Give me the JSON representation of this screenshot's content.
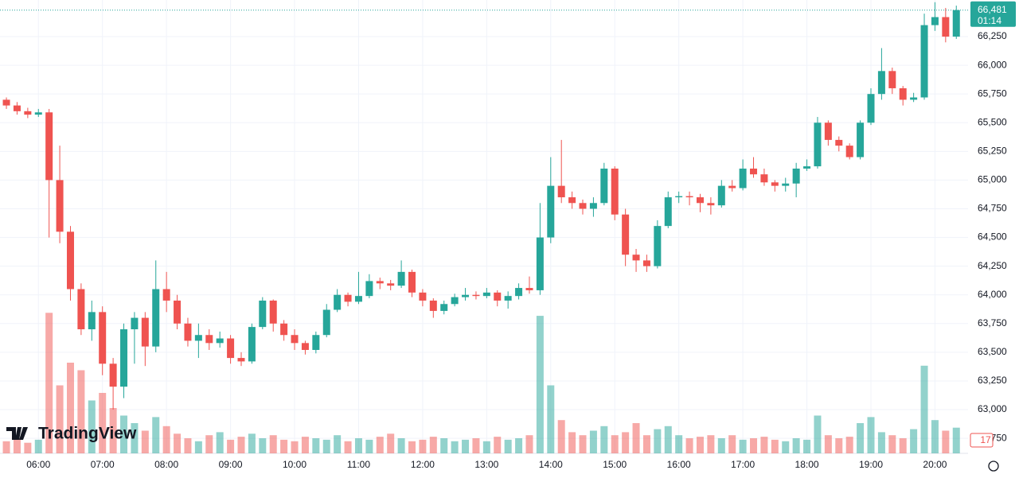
{
  "chart_data": {
    "type": "candlestick",
    "logo": "TradingView",
    "x": [
      330,
      340,
      350,
      360,
      370,
      380,
      390,
      400,
      410,
      420,
      430,
      440,
      450,
      460,
      470,
      480,
      490,
      500,
      510,
      520,
      530,
      540,
      550,
      560,
      570,
      580,
      590,
      600,
      610,
      620,
      630,
      640,
      650,
      660,
      670,
      680,
      690,
      700,
      710,
      720,
      730,
      740,
      750,
      760,
      770,
      780,
      790,
      800,
      810,
      820,
      830,
      840,
      850,
      860,
      870,
      880,
      890,
      900,
      910,
      920,
      930,
      940,
      950,
      960,
      970,
      980,
      990,
      1000,
      1010,
      1020,
      1030,
      1040,
      1050,
      1060,
      1070,
      1080,
      1090,
      1100,
      1110,
      1120,
      1130,
      1140,
      1150,
      1160,
      1170,
      1180,
      1190,
      1200,
      1210,
      1220
    ],
    "open": [
      65700,
      65650,
      65600,
      65570,
      65590,
      65000,
      64550,
      64050,
      63700,
      63850,
      63400,
      63200,
      63700,
      63800,
      63550,
      64050,
      63950,
      63750,
      63600,
      63650,
      63580,
      63620,
      63450,
      63420,
      63720,
      63950,
      63750,
      63650,
      63580,
      63520,
      63650,
      63870,
      64000,
      63940,
      63990,
      64120,
      64100,
      64080,
      64200,
      64020,
      63950,
      63860,
      63920,
      63980,
      64000,
      63990,
      64020,
      63950,
      63990,
      64060,
      64040,
      64500,
      64950,
      64850,
      64800,
      64750,
      64800,
      65100,
      64700,
      64350,
      64300,
      64250,
      64600,
      64850,
      64860,
      64850,
      64800,
      64780,
      64950,
      64930,
      65100,
      65050,
      64980,
      64950,
      64970,
      65100,
      65120,
      65500,
      65350,
      65300,
      65200,
      65500,
      65750,
      65950,
      65800,
      65700,
      65720,
      66350,
      66420,
      66250
    ],
    "high": [
      65720,
      65680,
      65630,
      65620,
      65620,
      65300,
      64600,
      64100,
      63950,
      63900,
      63450,
      63750,
      63850,
      63850,
      64300,
      64200,
      64000,
      63800,
      63750,
      63700,
      63680,
      63650,
      63500,
      63750,
      63980,
      63960,
      63780,
      63700,
      63600,
      63680,
      63920,
      64050,
      64020,
      64200,
      64180,
      64150,
      64130,
      64300,
      64220,
      64050,
      63970,
      63950,
      64010,
      64060,
      64030,
      64060,
      64040,
      64030,
      64100,
      64160,
      64800,
      65200,
      65350,
      64900,
      64830,
      64850,
      65150,
      65120,
      64750,
      64400,
      64350,
      64650,
      64900,
      64900,
      64900,
      64880,
      64850,
      65000,
      65000,
      65180,
      65200,
      65100,
      65000,
      65020,
      65150,
      65180,
      65550,
      65520,
      65380,
      65320,
      65520,
      65800,
      66150,
      65980,
      65820,
      65760,
      66450,
      66550,
      66500,
      66520
    ],
    "low": [
      65620,
      65570,
      65540,
      65550,
      64500,
      64450,
      63950,
      63650,
      63600,
      63300,
      63000,
      63100,
      63400,
      63380,
      63500,
      63850,
      63700,
      63550,
      63450,
      63520,
      63540,
      63400,
      63380,
      63400,
      63700,
      63680,
      63600,
      63520,
      63480,
      63490,
      63630,
      63850,
      63900,
      63920,
      63970,
      64050,
      64040,
      64060,
      63980,
      63900,
      63800,
      63830,
      63900,
      63950,
      63960,
      63970,
      63900,
      63880,
      63960,
      64010,
      64000,
      64450,
      64800,
      64750,
      64700,
      64680,
      64780,
      64650,
      64250,
      64200,
      64200,
      64230,
      64580,
      64800,
      64780,
      64720,
      64700,
      64760,
      64900,
      64910,
      65020,
      64950,
      64900,
      64900,
      64850,
      65080,
      65100,
      65300,
      65250,
      65180,
      65180,
      65480,
      65700,
      65750,
      65650,
      65680,
      65700,
      66300,
      66200,
      66230
    ],
    "close": [
      65650,
      65600,
      65570,
      65590,
      65000,
      64550,
      64050,
      63700,
      63850,
      63400,
      63200,
      63700,
      63800,
      63550,
      64050,
      63950,
      63750,
      63600,
      63650,
      63580,
      63620,
      63450,
      63420,
      63720,
      63950,
      63750,
      63650,
      63580,
      63520,
      63650,
      63870,
      64000,
      63940,
      63990,
      64120,
      64100,
      64080,
      64200,
      64020,
      63950,
      63860,
      63920,
      63980,
      64000,
      63990,
      64020,
      63950,
      63990,
      64060,
      64040,
      64500,
      64950,
      64850,
      64800,
      64750,
      64800,
      65100,
      64700,
      64350,
      64300,
      64250,
      64600,
      64850,
      64860,
      64850,
      64800,
      64780,
      64950,
      64930,
      65100,
      65050,
      64980,
      64950,
      64970,
      65100,
      65120,
      65500,
      65350,
      65300,
      65200,
      65500,
      65750,
      65950,
      65800,
      65700,
      65720,
      66350,
      66420,
      66250,
      66481
    ],
    "volume": [
      8,
      10,
      7,
      9,
      93,
      45,
      60,
      55,
      35,
      40,
      30,
      25,
      20,
      15,
      24,
      18,
      13,
      10,
      8,
      12,
      14,
      9,
      11,
      13,
      10,
      12,
      9,
      8,
      11,
      10,
      9,
      12,
      8,
      10,
      9,
      11,
      13,
      10,
      8,
      9,
      11,
      10,
      8,
      9,
      10,
      8,
      11,
      9,
      10,
      12,
      91,
      45,
      22,
      14,
      12,
      15,
      18,
      12,
      14,
      20,
      12,
      16,
      18,
      12,
      10,
      11,
      12,
      10,
      12,
      9,
      10,
      11,
      9,
      8,
      10,
      9,
      25,
      12,
      10,
      11,
      20,
      24,
      14,
      12,
      10,
      16,
      58,
      22,
      15,
      17
    ],
    "up_color": "#26a69a",
    "down_color": "#ef5350",
    "xlim": [
      324,
      1231
    ],
    "xticks": [
      {
        "value": 360,
        "label": "06:00"
      },
      {
        "value": 420,
        "label": "07:00"
      },
      {
        "value": 480,
        "label": "08:00"
      },
      {
        "value": 540,
        "label": "09:00"
      },
      {
        "value": 600,
        "label": "10:00"
      },
      {
        "value": 660,
        "label": "11:00"
      },
      {
        "value": 720,
        "label": "12:00"
      },
      {
        "value": 780,
        "label": "13:00"
      },
      {
        "value": 840,
        "label": "14:00"
      },
      {
        "value": 900,
        "label": "15:00"
      },
      {
        "value": 960,
        "label": "16:00"
      },
      {
        "value": 1020,
        "label": "17:00"
      },
      {
        "value": 1080,
        "label": "18:00"
      },
      {
        "value": 1140,
        "label": "19:00"
      },
      {
        "value": 1200,
        "label": "20:00"
      }
    ],
    "ylim": [
      62619,
      66569
    ],
    "yticks": [
      {
        "value": 62750,
        "label": "62,750"
      },
      {
        "value": 63000,
        "label": "63,000"
      },
      {
        "value": 63250,
        "label": "63,250"
      },
      {
        "value": 63500,
        "label": "63,500"
      },
      {
        "value": 63750,
        "label": "63,750"
      },
      {
        "value": 64000,
        "label": "64,000"
      },
      {
        "value": 64250,
        "label": "64,250"
      },
      {
        "value": 64500,
        "label": "64,500"
      },
      {
        "value": 64750,
        "label": "64,750"
      },
      {
        "value": 65000,
        "label": "65,000"
      },
      {
        "value": 65250,
        "label": "65,250"
      },
      {
        "value": 65500,
        "label": "65,500"
      },
      {
        "value": 65750,
        "label": "65,750"
      },
      {
        "value": 66000,
        "label": "66,000"
      },
      {
        "value": 66250,
        "label": "66,250"
      }
    ],
    "volume_ylim": [
      0,
      300
    ],
    "last_price": {
      "value": 66481,
      "label": "66,481"
    },
    "countdown": "01:14",
    "grid": true
  }
}
